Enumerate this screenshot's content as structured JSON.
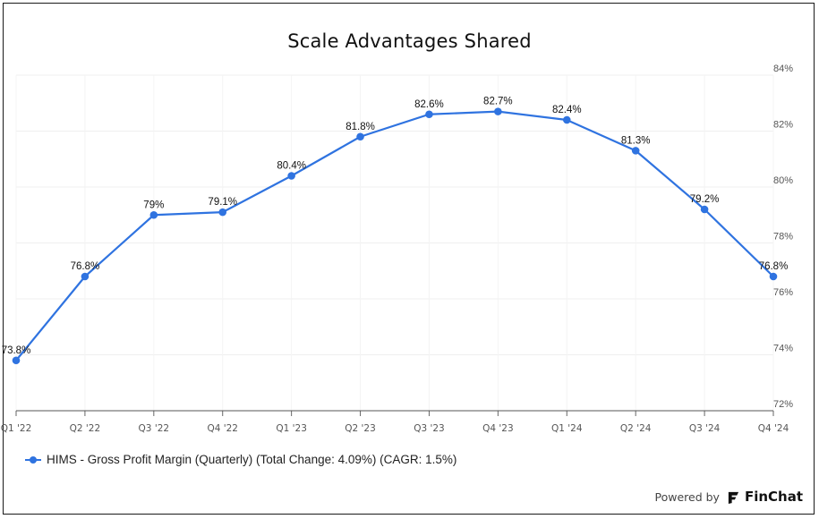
{
  "chart_data": {
    "type": "line",
    "title": "Scale Advantages Shared",
    "categories": [
      "Q1 '22",
      "Q2 '22",
      "Q3 '22",
      "Q4 '22",
      "Q1 '23",
      "Q2 '23",
      "Q3 '23",
      "Q4 '23",
      "Q1 '24",
      "Q2 '24",
      "Q3 '24",
      "Q4 '24"
    ],
    "series": [
      {
        "name": "HIMS - Gross Profit Margin (Quarterly) (Total Change: 4.09%) (CAGR: 1.5%)",
        "values": [
          73.8,
          76.8,
          79.0,
          79.1,
          80.4,
          81.8,
          82.6,
          82.7,
          82.4,
          81.3,
          79.2,
          76.8
        ],
        "labels": [
          "73.8%",
          "76.8%",
          "79%",
          "79.1%",
          "80.4%",
          "81.8%",
          "82.6%",
          "82.7%",
          "82.4%",
          "81.3%",
          "79.2%",
          "76.8%"
        ],
        "color": "#2f73e0"
      }
    ],
    "ylim": [
      72,
      84
    ],
    "yticks": [
      72,
      74,
      76,
      78,
      80,
      82,
      84
    ],
    "ytick_labels": [
      "72%",
      "74%",
      "76%",
      "78%",
      "80%",
      "82%",
      "84%"
    ],
    "y_axis_side": "right",
    "grid": true,
    "legend_position": "bottom-left",
    "xlabel": "",
    "ylabel": ""
  },
  "footer": {
    "powered_by": "Powered by",
    "brand": "FinChat",
    "logo_icon": "finchat-logo-icon"
  }
}
